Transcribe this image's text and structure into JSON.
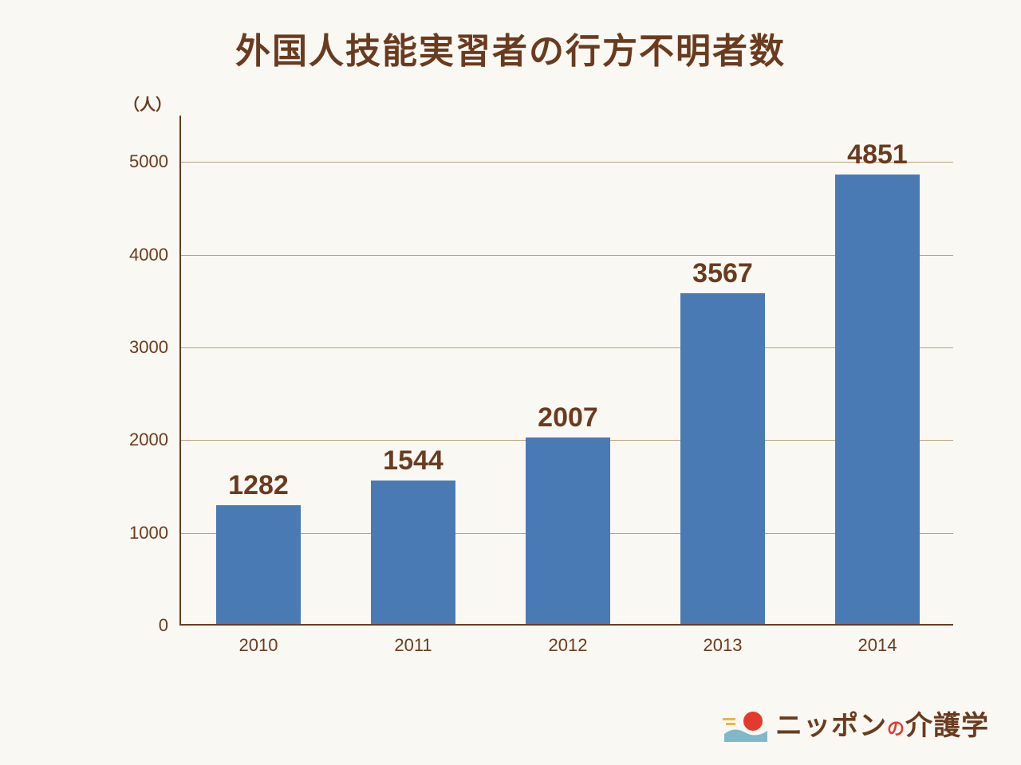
{
  "title": "外国人技能実習者の行方不明者数",
  "title_color": "#6a3b1f",
  "title_fontsize": 44,
  "chart": {
    "type": "bar",
    "y_unit_label": "（人）",
    "y_unit_color": "#6a3b1f",
    "y_unit_fontsize": 20,
    "categories": [
      "2010",
      "2011",
      "2012",
      "2013",
      "2014"
    ],
    "values": [
      1282,
      1544,
      2007,
      3567,
      4851
    ],
    "value_labels": [
      "1282",
      "1544",
      "2007",
      "3567",
      "4851"
    ],
    "bar_color": "#4a7ab4",
    "bar_label_color": "#6a3b1f",
    "bar_label_fontsize": 34,
    "bar_width_ratio": 0.55,
    "ylim": [
      0,
      5500
    ],
    "yticks": [
      0,
      1000,
      2000,
      3000,
      4000,
      5000
    ],
    "ytick_labels": [
      "0",
      "1000",
      "2000",
      "3000",
      "4000",
      "5000"
    ],
    "ytick_color": "#6a3b1f",
    "ytick_fontsize": 22,
    "xtick_color": "#6a3b1f",
    "xtick_fontsize": 22,
    "axis_color": "#6a3b1f",
    "grid_color": "#b7a27e",
    "background_color": "#faf8f2"
  },
  "logo": {
    "text_parts": [
      "ニッポン",
      "の",
      "介護学"
    ],
    "main_color": "#6a3b1f",
    "accent_color": "#e23b2e",
    "sun_color": "#e23b2e",
    "wave_color": "#7fb8c9",
    "motion_color": "#e6b84a"
  }
}
